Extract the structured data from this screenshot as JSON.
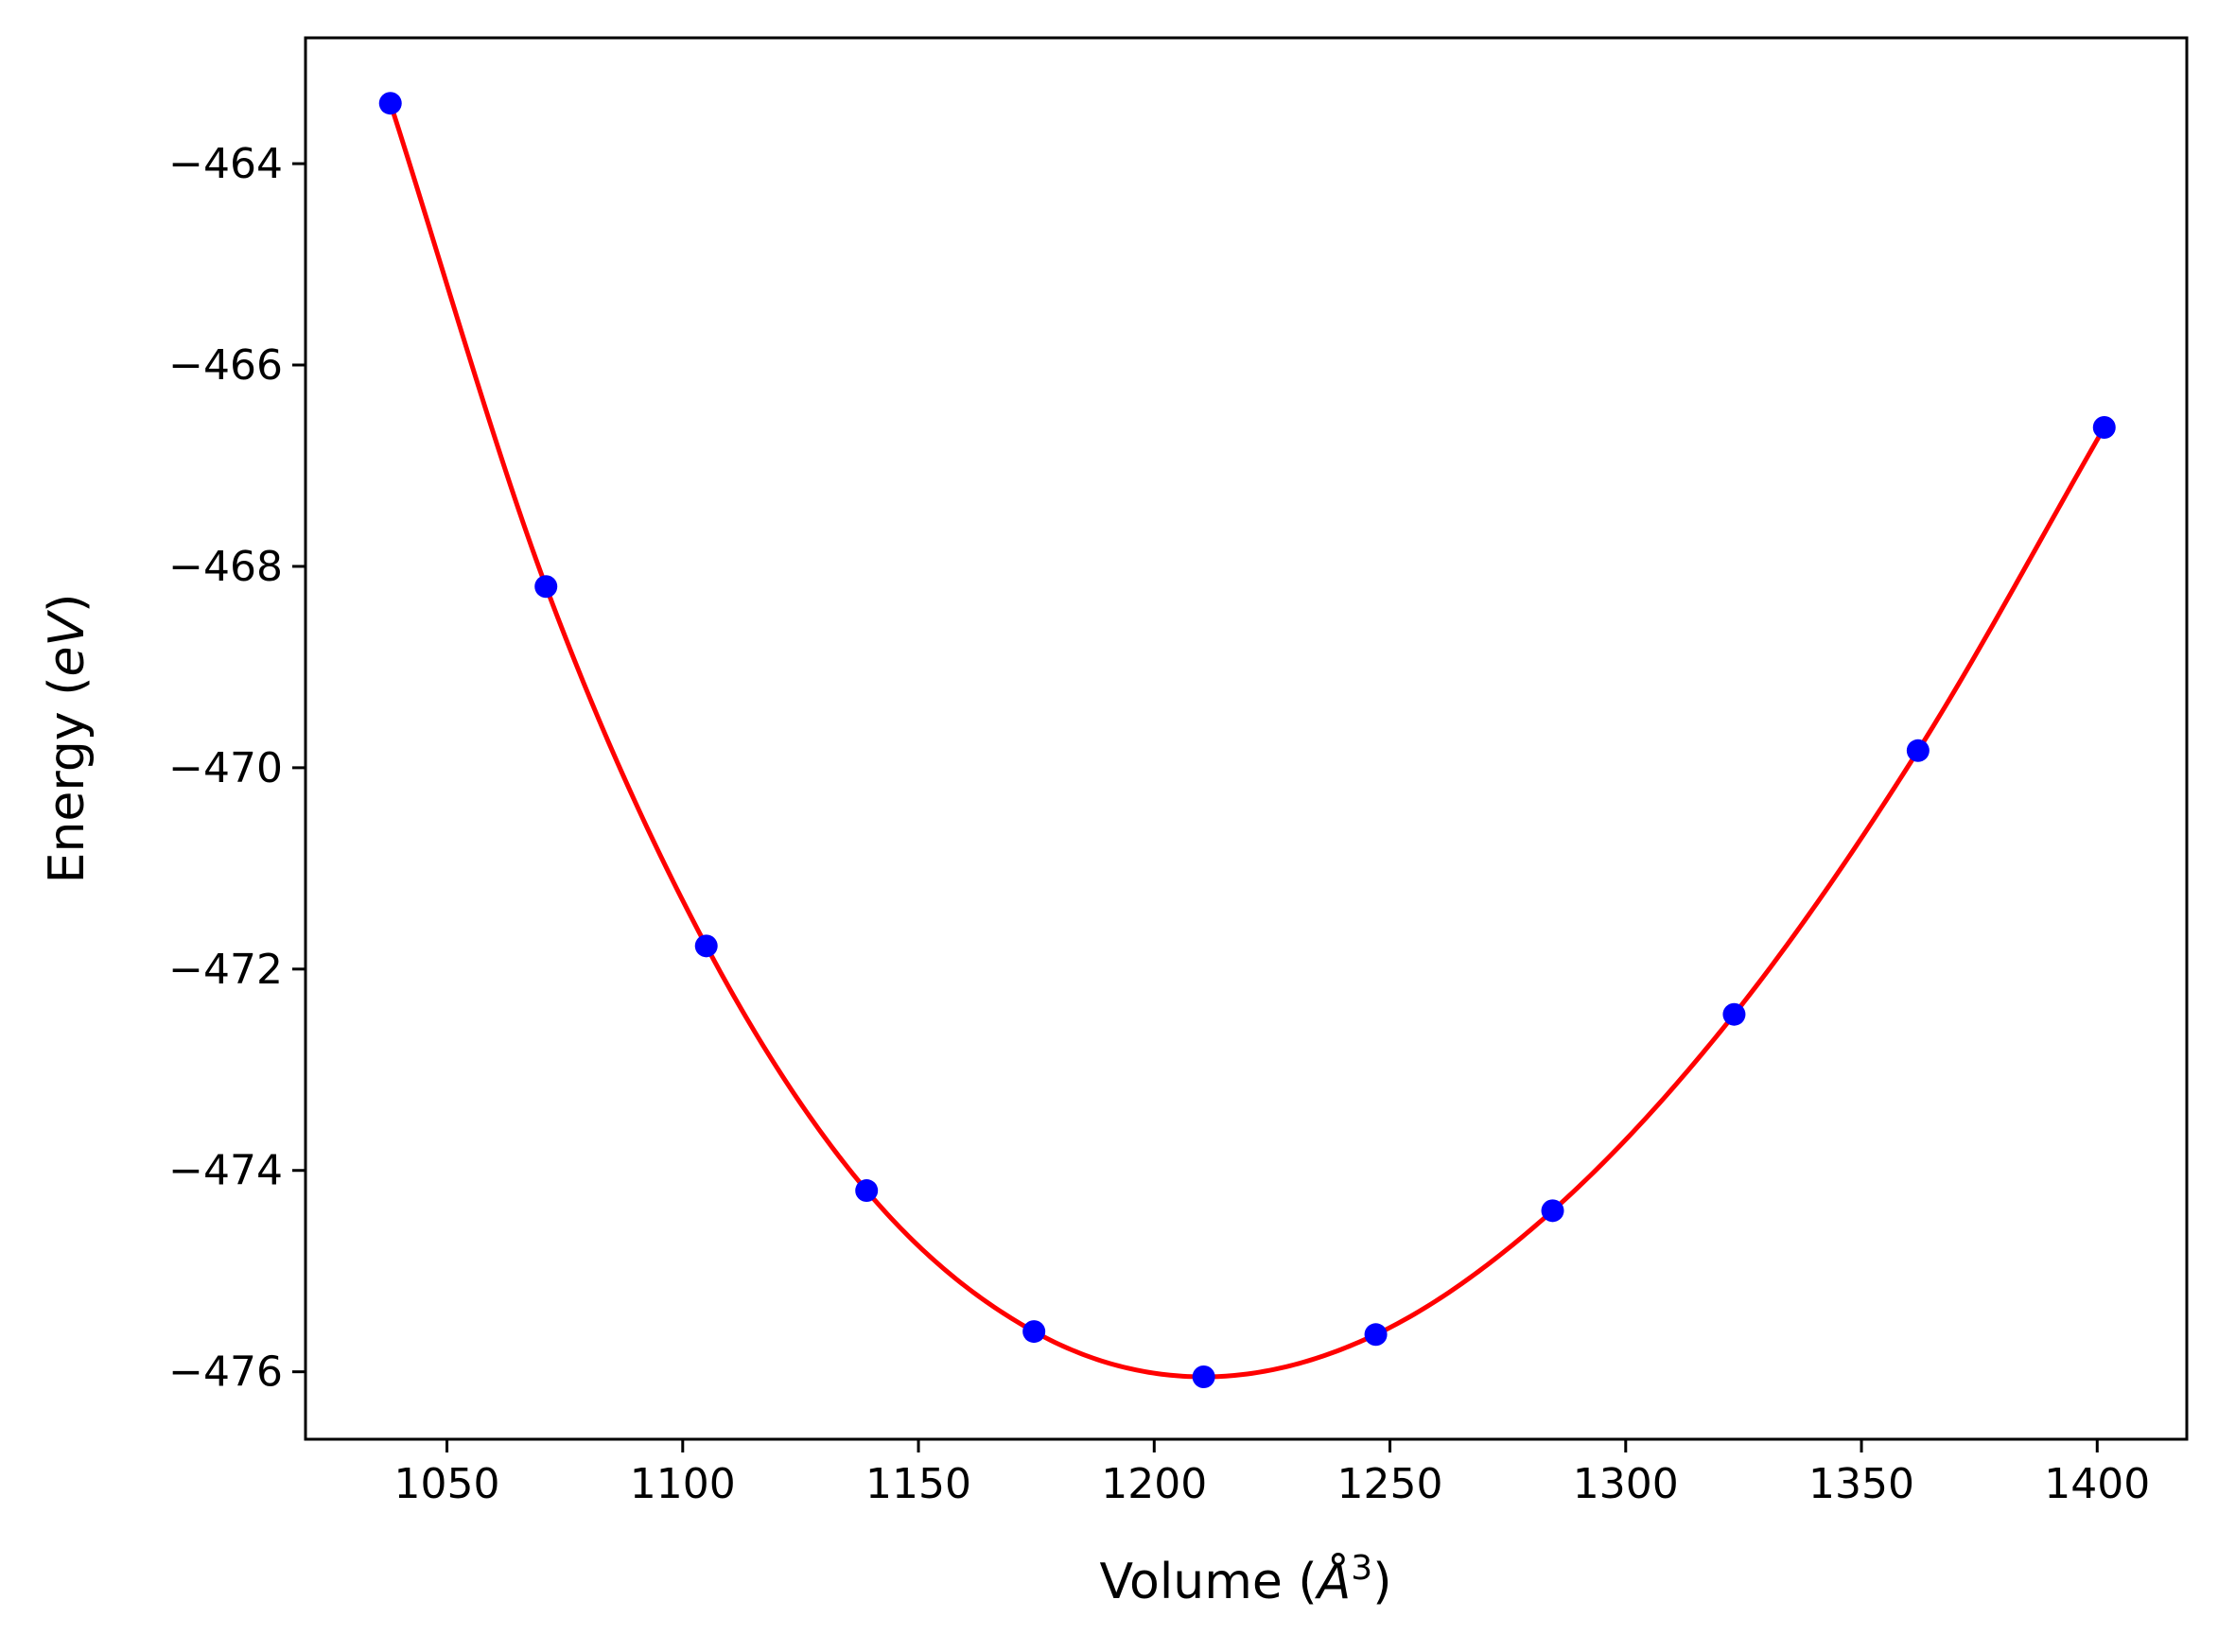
{
  "chart_data": {
    "type": "line",
    "title": "",
    "xlabel": {
      "pre": "Volume (",
      "sym": "Å",
      "sup": "3",
      "post": ")"
    },
    "ylabel": {
      "pre": "Energy (",
      "unit": "eV",
      "post": ")"
    },
    "xlim": [
      1020,
      1419
    ],
    "ylim": [
      -476.67,
      -462.75
    ],
    "xticks": [
      1050,
      1100,
      1150,
      1200,
      1250,
      1300,
      1350,
      1400
    ],
    "xtick_labels": [
      "1050",
      "1100",
      "1150",
      "1200",
      "1250",
      "1300",
      "1350",
      "1400"
    ],
    "yticks": [
      -464,
      -466,
      -468,
      -470,
      -472,
      -474,
      -476
    ],
    "ytick_labels": [
      "−464",
      "−466",
      "−468",
      "−470",
      "−472",
      "−474",
      "−476"
    ],
    "grid": false,
    "legend": "none",
    "series": [
      {
        "kind": "scatter",
        "color": "#0000ff",
        "x": [
          1038,
          1071,
          1105,
          1139,
          1174.5,
          1210.5,
          1247,
          1284.5,
          1323,
          1362,
          1401.5
        ],
        "y": [
          -463.4,
          -468.2,
          -471.77,
          -474.2,
          -475.6,
          -476.05,
          -475.63,
          -474.4,
          -472.45,
          -469.83,
          -466.62
        ]
      },
      {
        "kind": "fit",
        "color": "#ff0000"
      }
    ]
  }
}
